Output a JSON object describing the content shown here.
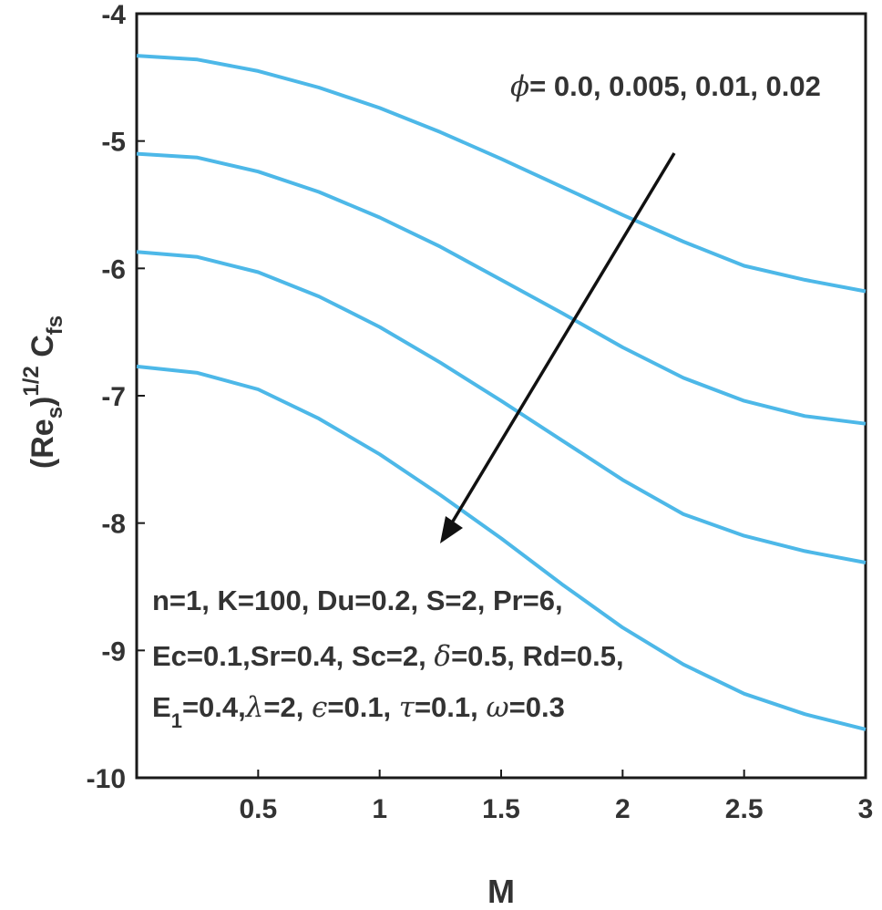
{
  "chart_data": {
    "type": "line",
    "xlabel": "M",
    "ylabel": "(Re_s)^1/2 C_fs",
    "xlim": [
      0,
      3
    ],
    "ylim": [
      -10,
      -4
    ],
    "x_ticks": [
      "0.5",
      "1",
      "1.5",
      "2",
      "2.5",
      "3"
    ],
    "y_ticks": [
      "-4",
      "-5",
      "-6",
      "-7",
      "-8",
      "-9",
      "-10"
    ],
    "grid": false,
    "line_color": "#4db8e8",
    "x": [
      0,
      0.25,
      0.5,
      0.75,
      1.0,
      1.25,
      1.5,
      1.75,
      2.0,
      2.25,
      2.5,
      2.75,
      3.0
    ],
    "series": [
      {
        "values": [
          -4.33,
          -4.36,
          -4.45,
          -4.58,
          -4.74,
          -4.93,
          -5.14,
          -5.36,
          -5.58,
          -5.79,
          -5.98,
          -6.09,
          -6.18
        ]
      },
      {
        "values": [
          -5.1,
          -5.13,
          -5.24,
          -5.4,
          -5.6,
          -5.83,
          -6.09,
          -6.35,
          -6.62,
          -6.86,
          -7.04,
          -7.16,
          -7.22
        ]
      },
      {
        "values": [
          -5.87,
          -5.91,
          -6.03,
          -6.22,
          -6.46,
          -6.74,
          -7.04,
          -7.35,
          -7.66,
          -7.93,
          -8.1,
          -8.22,
          -8.31
        ]
      },
      {
        "values": [
          -6.77,
          -6.82,
          -6.95,
          -7.18,
          -7.46,
          -7.78,
          -8.12,
          -8.48,
          -8.82,
          -9.11,
          -9.34,
          -9.5,
          -9.62
        ]
      }
    ],
    "annotations": {
      "phi_symbol": "ϕ",
      "phi_values": "= 0.0, 0.005, 0.01, 0.02",
      "params_line1": "n=1, K=100, Du=0.2, S=2,  Pr=6,",
      "params_line2_a": "Ec=0.1,Sr=0.4, Sc=2, ",
      "params_line2_delta": "δ",
      "params_line2_b": "=0.5, Rd=0.5,",
      "params_line3_E": "E",
      "params_line3_sub": "1",
      "params_line3_a": "=0.4,",
      "params_line3_lambda": "λ",
      "params_line3_b": "=2, ",
      "params_line3_eps": "ϵ",
      "params_line3_c": "=0.1, ",
      "params_line3_tau": "τ",
      "params_line3_d": "=0.1,   ",
      "params_line3_omega": "ω",
      "params_line3_e": "=0.3"
    }
  }
}
